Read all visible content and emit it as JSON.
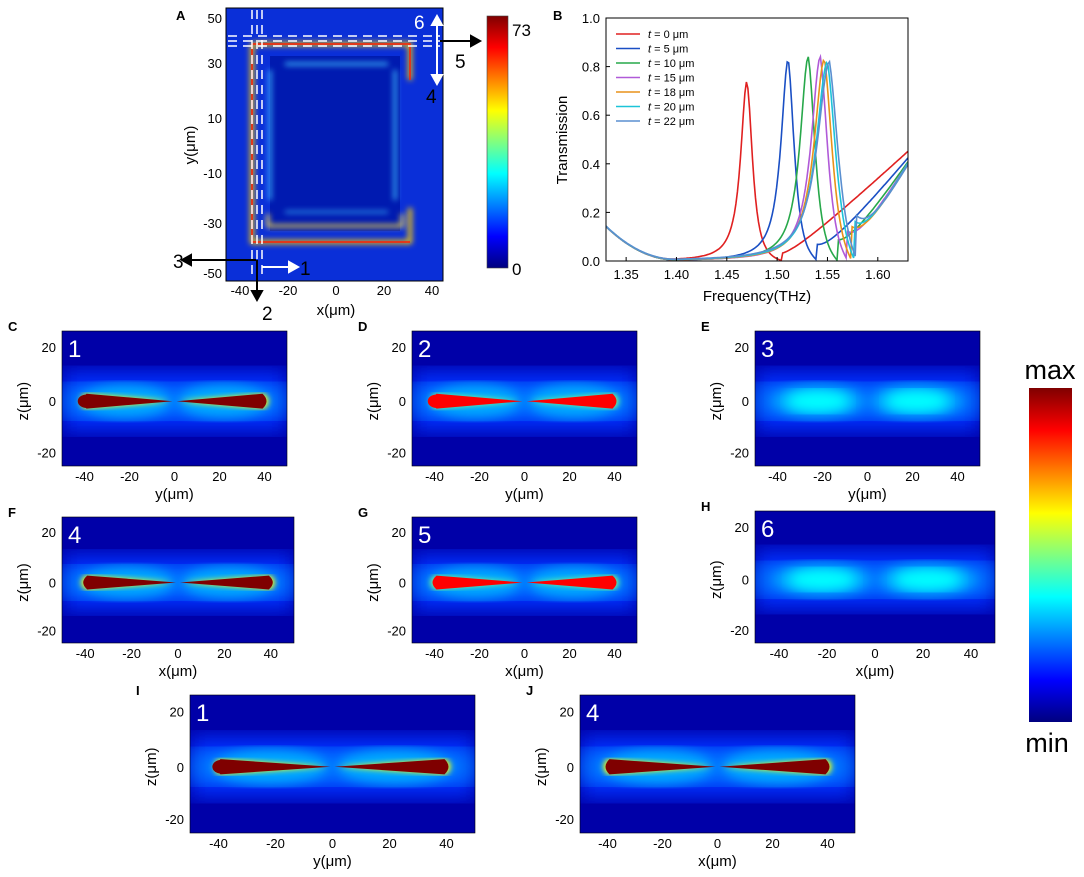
{
  "colors": {
    "jet": [
      "#00007f",
      "#0000ff",
      "#0080ff",
      "#00ffff",
      "#80ff80",
      "#ffff00",
      "#ff8000",
      "#ff0000",
      "#7f0000"
    ],
    "series": [
      "#e02020",
      "#1a4fc4",
      "#27a84a",
      "#b05ad8",
      "#e8921a",
      "#1cc4d8",
      "#5a8fd0"
    ],
    "guide": "#ffffff"
  },
  "panelA": {
    "label": "A",
    "xticks": [
      "-40",
      "-20",
      "0",
      "20",
      "40"
    ],
    "yticks": [
      "50",
      "30",
      "10",
      "-10",
      "-30",
      "-50"
    ],
    "xlabel": "x(μm)",
    "ylabel": "y(μm)",
    "colorbar_max": "73",
    "colorbar_min": "0",
    "markers": [
      "1",
      "2",
      "3",
      "4",
      "5",
      "6"
    ]
  },
  "chart_data": [
    {
      "id": "B",
      "type": "line",
      "title": "",
      "xlabel": "Frequency(THz)",
      "ylabel": "Transmission",
      "xlim": [
        1.33,
        1.63
      ],
      "ylim": [
        0.0,
        1.0
      ],
      "xticks": [
        "1.35",
        "1.40",
        "1.45",
        "1.50",
        "1.55",
        "1.60"
      ],
      "yticks": [
        "0.0",
        "0.2",
        "0.4",
        "0.6",
        "0.8",
        "1.0"
      ],
      "legend_position": "top-left",
      "series": [
        {
          "name": "t = 0 μm",
          "t_label": "t",
          "rest": " = 0 μm",
          "peak_freq": 1.47,
          "peak_value": 0.74,
          "dip_freq": 1.505,
          "end_value": 0.45
        },
        {
          "name": "t = 5 μm",
          "t_label": "t",
          "rest": " = 5 μm",
          "peak_freq": 1.511,
          "peak_value": 0.83,
          "dip_freq": 1.54,
          "end_value": 0.42
        },
        {
          "name": "t = 10 μm",
          "t_label": "t",
          "rest": " = 10 μm",
          "peak_freq": 1.531,
          "peak_value": 0.84,
          "dip_freq": 1.56,
          "end_value": 0.4
        },
        {
          "name": "t = 15 μm",
          "t_label": "t",
          "rest": " = 15 μm",
          "peak_freq": 1.543,
          "peak_value": 0.84,
          "dip_freq": 1.57,
          "end_value": 0.39
        },
        {
          "name": "t = 18 μm",
          "t_label": "t",
          "rest": " = 18 μm",
          "peak_freq": 1.547,
          "peak_value": 0.83,
          "dip_freq": 1.574,
          "end_value": 0.38
        },
        {
          "name": "t = 20 μm",
          "t_label": "t",
          "rest": " = 20 μm",
          "peak_freq": 1.55,
          "peak_value": 0.82,
          "dip_freq": 1.577,
          "end_value": 0.38
        },
        {
          "name": "t = 22 μm",
          "t_label": "t",
          "rest": " = 22 μm",
          "peak_freq": 1.552,
          "peak_value": 0.82,
          "dip_freq": 1.579,
          "end_value": 0.37
        }
      ]
    },
    {
      "id": "C-J",
      "type": "heatmap",
      "colorbar_max": "max",
      "colorbar_min": "min",
      "zticks": [
        "20",
        "0",
        "-20"
      ],
      "zlabel": "z(μm)",
      "panels": [
        {
          "label": "C",
          "num": "1",
          "xlabel": "y(μm)",
          "xticks": [
            "-40",
            "-20",
            "0",
            "20",
            "40"
          ],
          "intensity": 1.0,
          "split_left": true
        },
        {
          "label": "D",
          "num": "2",
          "xlabel": "y(μm)",
          "xticks": [
            "-40",
            "-20",
            "0",
            "20",
            "40"
          ],
          "intensity": 0.82,
          "split_left": true
        },
        {
          "label": "E",
          "num": "3",
          "xlabel": "y(μm)",
          "xticks": [
            "-40",
            "-20",
            "0",
            "20",
            "40"
          ],
          "intensity": 0.42,
          "split_left": false
        },
        {
          "label": "F",
          "num": "4",
          "xlabel": "x(μm)",
          "xticks": [
            "-40",
            "-20",
            "0",
            "20",
            "40"
          ],
          "intensity": 1.0,
          "split_left": false
        },
        {
          "label": "G",
          "num": "5",
          "xlabel": "x(μm)",
          "xticks": [
            "-40",
            "-20",
            "0",
            "20",
            "40"
          ],
          "intensity": 0.82,
          "split_left": false
        },
        {
          "label": "H",
          "num": "6",
          "xlabel": "x(μm)",
          "xticks": [
            "-40",
            "-20",
            "0",
            "20",
            "40"
          ],
          "intensity": 0.42,
          "split_left": false
        },
        {
          "label": "I",
          "num": "1",
          "xlabel": "y(μm)",
          "xticks": [
            "-40",
            "-20",
            "0",
            "20",
            "40"
          ],
          "intensity": 1.0,
          "split_left": true
        },
        {
          "label": "J",
          "num": "4",
          "xlabel": "x(μm)",
          "xticks": [
            "-40",
            "-20",
            "0",
            "20",
            "40"
          ],
          "intensity": 1.0,
          "split_left": false
        }
      ]
    }
  ]
}
